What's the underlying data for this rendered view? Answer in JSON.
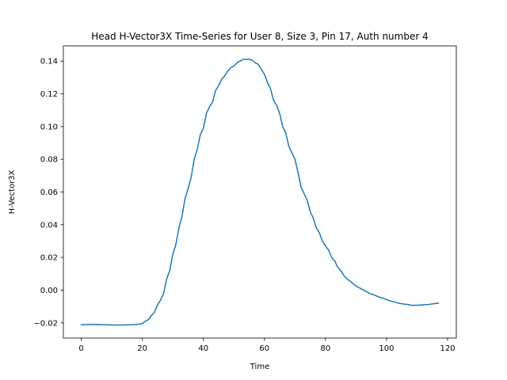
{
  "chart_data": {
    "type": "line",
    "title": "Head H-Vector3X Time-Series for User 8, Size 3, Pin 17, Auth number 4",
    "xlabel": "Time",
    "ylabel": "H-Vector3X",
    "xlim": [
      -5.85,
      122.85
    ],
    "ylim": [
      -0.0293,
      0.1493
    ],
    "x_ticks": [
      0,
      20,
      40,
      60,
      80,
      100,
      120
    ],
    "x_tick_labels": [
      "0",
      "20",
      "40",
      "60",
      "80",
      "100",
      "120"
    ],
    "y_ticks": [
      -0.02,
      0.0,
      0.02,
      0.04,
      0.06,
      0.08,
      0.1,
      0.12,
      0.14
    ],
    "y_tick_labels": [
      "−0.02",
      "0.00",
      "0.02",
      "0.04",
      "0.06",
      "0.08",
      "0.10",
      "0.12",
      "0.14"
    ],
    "grid": false,
    "series": [
      {
        "color": "#1f77b4",
        "x": [
          0,
          2,
          4,
          6,
          8,
          10,
          12,
          14,
          16,
          18,
          20,
          21,
          22,
          23,
          24,
          25,
          26,
          27,
          28,
          29,
          30,
          31,
          32,
          33,
          34,
          35,
          36,
          37,
          38,
          39,
          40,
          41,
          42,
          43,
          44,
          45,
          46,
          47,
          48,
          49,
          50,
          51,
          52,
          53,
          54,
          55,
          56,
          57,
          58,
          59,
          60,
          61,
          62,
          63,
          64,
          65,
          66,
          67,
          68,
          69,
          70,
          71,
          72,
          73,
          74,
          75,
          76,
          77,
          78,
          79,
          80,
          81,
          82,
          83,
          84,
          85,
          86,
          87,
          88,
          89,
          90,
          91,
          92,
          93,
          94,
          95,
          96,
          97,
          98,
          99,
          100,
          101,
          102,
          103,
          104,
          105,
          106,
          107,
          108,
          109,
          110,
          112,
          114,
          116,
          117
        ],
        "y": [
          -0.0212,
          -0.0211,
          -0.021,
          -0.0211,
          -0.0212,
          -0.0213,
          -0.0213,
          -0.0213,
          -0.0212,
          -0.021,
          -0.0205,
          -0.019,
          -0.018,
          -0.0155,
          -0.0135,
          -0.009,
          -0.006,
          -0.002,
          0.007,
          0.012,
          0.022,
          0.028,
          0.038,
          0.045,
          0.056,
          0.062,
          0.069,
          0.08,
          0.086,
          0.095,
          0.099,
          0.108,
          0.112,
          0.115,
          0.122,
          0.125,
          0.129,
          0.131,
          0.134,
          0.136,
          0.137,
          0.139,
          0.14,
          0.141,
          0.1412,
          0.1412,
          0.1405,
          0.139,
          0.138,
          0.135,
          0.132,
          0.127,
          0.123,
          0.116,
          0.113,
          0.108,
          0.1,
          0.096,
          0.088,
          0.084,
          0.08,
          0.072,
          0.063,
          0.059,
          0.055,
          0.048,
          0.044,
          0.038,
          0.035,
          0.03,
          0.027,
          0.0245,
          0.02,
          0.018,
          0.014,
          0.012,
          0.009,
          0.007,
          0.0055,
          0.004,
          0.0025,
          0.0015,
          0.0005,
          -0.0005,
          -0.0015,
          -0.0025,
          -0.003,
          -0.0038,
          -0.0045,
          -0.005,
          -0.0058,
          -0.0065,
          -0.007,
          -0.0075,
          -0.008,
          -0.0083,
          -0.0086,
          -0.0088,
          -0.0092,
          -0.0093,
          -0.0093,
          -0.009,
          -0.0087,
          -0.0082,
          -0.008
        ]
      }
    ]
  }
}
